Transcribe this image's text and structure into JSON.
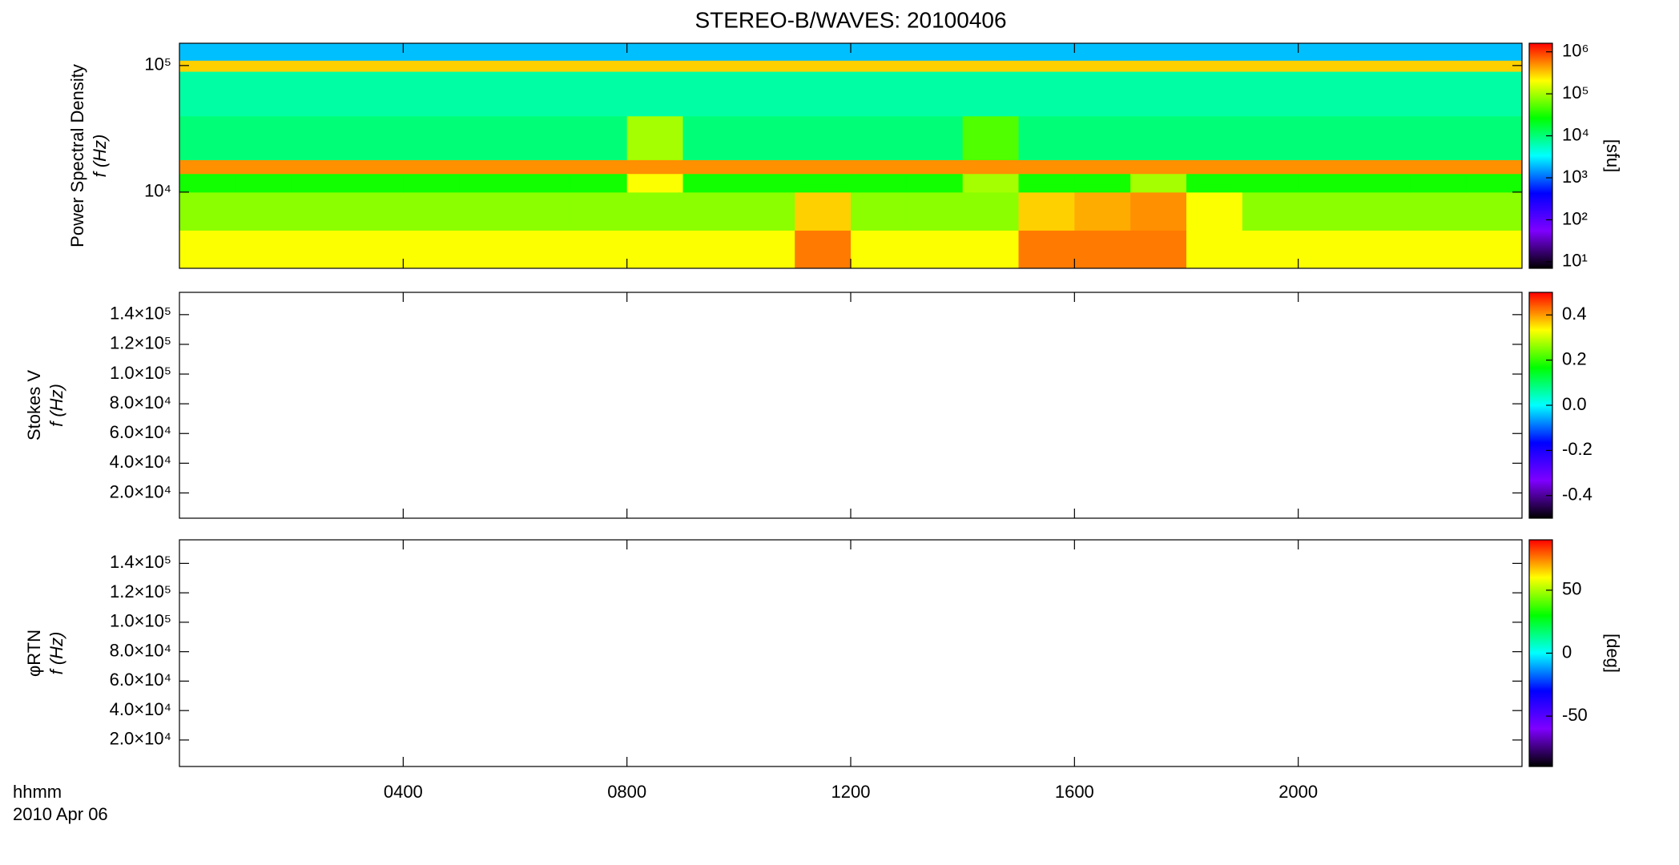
{
  "chart_data": [
    {
      "type": "heatmap",
      "title": "STEREO-B/WAVES: 20100406",
      "ylabel": [
        "Power Spectral Density",
        "f (Hz)"
      ],
      "log_y": true,
      "ylim": [
        2500,
        150000
      ],
      "yticks": [
        {
          "value": 10000,
          "label": "10⁴"
        },
        {
          "value": 100000,
          "label": "10⁵"
        }
      ],
      "x_bins": [
        0,
        1,
        2,
        3,
        4,
        5,
        6,
        7,
        8,
        9,
        10,
        11,
        12,
        13,
        14,
        15,
        16,
        17,
        18,
        19,
        20,
        21,
        22,
        23,
        24
      ],
      "y_bins": [
        2500,
        5000,
        10000,
        14000,
        18000,
        40000,
        90000,
        110000,
        150000
      ],
      "values": [
        [
          200000,
          200000,
          200000,
          200000,
          200000,
          200000,
          200000,
          200000,
          200000,
          200000,
          200000,
          600000,
          200000,
          200000,
          200000,
          600000,
          600000,
          600000,
          200000,
          200000,
          200000,
          200000,
          200000,
          200000
        ],
        [
          80000,
          80000,
          80000,
          80000,
          80000,
          80000,
          80000,
          80000,
          80000,
          80000,
          80000,
          300000,
          80000,
          80000,
          80000,
          300000,
          400000,
          500000,
          200000,
          80000,
          80000,
          80000,
          80000,
          80000
        ],
        [
          30000,
          30000,
          30000,
          30000,
          30000,
          30000,
          30000,
          30000,
          200000,
          30000,
          30000,
          30000,
          30000,
          30000,
          100000,
          30000,
          30000,
          100000,
          30000,
          30000,
          30000,
          30000,
          30000,
          30000
        ],
        [
          500000,
          500000,
          500000,
          500000,
          500000,
          500000,
          500000,
          500000,
          500000,
          500000,
          500000,
          500000,
          500000,
          500000,
          500000,
          500000,
          500000,
          500000,
          500000,
          500000,
          500000,
          500000,
          500000,
          500000
        ],
        [
          10000,
          10000,
          10000,
          10000,
          10000,
          10000,
          10000,
          10000,
          100000,
          10000,
          10000,
          10000,
          10000,
          10000,
          50000,
          10000,
          10000,
          10000,
          10000,
          10000,
          10000,
          10000,
          10000,
          10000
        ],
        [
          7000,
          7000,
          7000,
          7000,
          7000,
          7000,
          7000,
          7000,
          7000,
          7000,
          7000,
          7000,
          7000,
          7000,
          7000,
          7000,
          7000,
          7000,
          7000,
          7000,
          7000,
          7000,
          7000,
          7000
        ],
        [
          300000,
          300000,
          300000,
          300000,
          300000,
          300000,
          300000,
          300000,
          300000,
          300000,
          300000,
          300000,
          300000,
          300000,
          300000,
          300000,
          300000,
          300000,
          300000,
          300000,
          300000,
          300000,
          300000,
          300000
        ],
        [
          2000,
          2000,
          2000,
          2000,
          2000,
          2000,
          2000,
          2000,
          2000,
          2000,
          2000,
          2000,
          2000,
          2000,
          2000,
          2000,
          2000,
          2000,
          2000,
          2000,
          2000,
          2000,
          2000,
          2000
        ]
      ],
      "colormap": [
        "#000000",
        "#7f00ff",
        "#0000ff",
        "#00ffff",
        "#00ff00",
        "#ffff00",
        "#ff0000"
      ],
      "log_color": true,
      "clim": [
        7,
        1600000
      ],
      "cticks": [
        {
          "value": 10,
          "label": "10¹"
        },
        {
          "value": 100,
          "label": "10²"
        },
        {
          "value": 1000,
          "label": "10³"
        },
        {
          "value": 10000,
          "label": "10⁴"
        },
        {
          "value": 100000,
          "label": "10⁵"
        },
        {
          "value": 1000000,
          "label": "10⁶"
        }
      ],
      "clabel": "[sfu]"
    },
    {
      "type": "heatmap",
      "ylabel": [
        "Stokes V",
        "f (Hz)"
      ],
      "log_y": false,
      "ylim": [
        3000,
        155000
      ],
      "yticks": [
        {
          "value": 20000,
          "label": "2.0×10⁴"
        },
        {
          "value": 40000,
          "label": "4.0×10⁴"
        },
        {
          "value": 60000,
          "label": "6.0×10⁴"
        },
        {
          "value": 80000,
          "label": "8.0×10⁴"
        },
        {
          "value": 100000,
          "label": "1.0×10⁵"
        },
        {
          "value": 120000,
          "label": "1.2×10⁵"
        },
        {
          "value": 140000,
          "label": "1.4×10⁵"
        }
      ],
      "colormap": [
        "#000000",
        "#7f00ff",
        "#0000ff",
        "#00ffff",
        "#00ff00",
        "#ffff00",
        "#ff0000"
      ],
      "log_color": false,
      "clim": [
        -0.5,
        0.5
      ],
      "cticks": [
        -0.4,
        -0.2,
        {
          "value": 0,
          "label": "0.0"
        },
        0.2,
        0.4
      ]
    },
    {
      "type": "heatmap",
      "ylabel": [
        "φRTN",
        "f (Hz)"
      ],
      "log_y": false,
      "ylim": [
        2000,
        156000
      ],
      "yticks": [
        {
          "value": 20000,
          "label": "2.0×10⁴"
        },
        {
          "value": 40000,
          "label": "4.0×10⁴"
        },
        {
          "value": 60000,
          "label": "6.0×10⁴"
        },
        {
          "value": 80000,
          "label": "8.0×10⁴"
        },
        {
          "value": 100000,
          "label": "1.0×10⁵"
        },
        {
          "value": 120000,
          "label": "1.2×10⁵"
        },
        {
          "value": 140000,
          "label": "1.4×10⁵"
        }
      ],
      "colormap": [
        "#000000",
        "#7f00ff",
        "#0000ff",
        "#00ffff",
        "#00ff00",
        "#ffff00",
        "#ff0000"
      ],
      "log_color": false,
      "clim": [
        -90,
        90
      ],
      "cticks": [
        -50,
        0,
        50
      ],
      "clabel": "[deg]",
      "xlim": [
        0,
        24
      ],
      "xticks": [
        {
          "value": 4,
          "label": "0400"
        },
        {
          "value": 8,
          "label": "0800"
        },
        {
          "value": 12,
          "label": "1200"
        },
        {
          "value": 16,
          "label": "1600"
        },
        {
          "value": 20,
          "label": "2000"
        }
      ],
      "xlabel": [
        "hhmm",
        "2010 Apr 06"
      ]
    }
  ]
}
